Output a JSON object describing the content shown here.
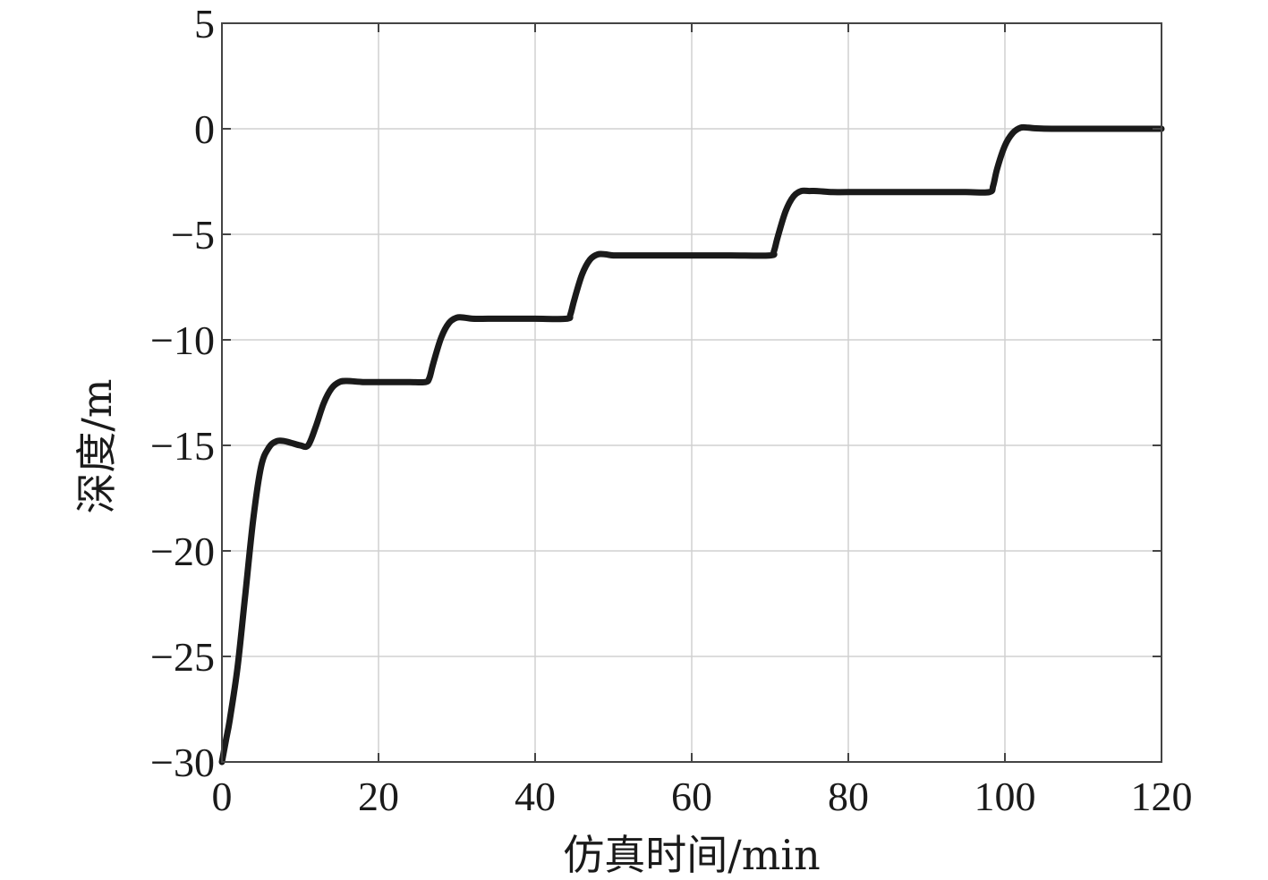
{
  "chart_data": {
    "type": "line",
    "title": "",
    "xlabel": "仿真时间/min",
    "ylabel": "深度/m",
    "xlim": [
      0,
      120
    ],
    "ylim": [
      -30,
      5
    ],
    "xticks": [
      0,
      20,
      40,
      60,
      80,
      100,
      120
    ],
    "yticks": [
      5,
      0,
      -5,
      -10,
      -15,
      -20,
      -25,
      -30
    ],
    "xtick_labels": [
      "0",
      "20",
      "40",
      "60",
      "80",
      "100",
      "120"
    ],
    "ytick_labels": [
      "5",
      "0",
      "−5",
      "−10",
      "−15",
      "−20",
      "−25",
      "−30"
    ],
    "grid": true,
    "legend": "none",
    "line_color": "#1a1a1a",
    "series": [
      {
        "x": [
          0,
          0.5,
          1,
          2,
          3,
          4,
          5,
          6,
          7,
          8,
          9,
          10,
          11,
          12,
          13,
          14,
          15,
          16,
          18,
          20,
          22,
          24,
          26,
          26.5,
          27,
          28,
          29,
          30,
          31,
          32,
          34,
          36,
          40,
          44,
          44.5,
          45,
          46,
          47,
          48,
          49,
          50,
          52,
          55,
          60,
          65,
          70,
          70.5,
          71,
          72,
          73,
          74,
          75,
          76,
          78,
          80,
          85,
          90,
          95,
          98,
          98.5,
          99,
          100,
          101,
          102,
          103,
          104,
          106,
          110,
          115,
          120
        ],
        "y": [
          -30,
          -29,
          -28,
          -25.5,
          -22,
          -18.5,
          -16,
          -15.1,
          -14.8,
          -14.8,
          -14.9,
          -15,
          -15,
          -14.1,
          -13,
          -12.3,
          -12,
          -11.95,
          -12,
          -12,
          -12,
          -12,
          -12,
          -11.8,
          -11.1,
          -9.9,
          -9.2,
          -8.95,
          -8.95,
          -9,
          -9,
          -9,
          -9,
          -9,
          -8.8,
          -8.1,
          -6.9,
          -6.2,
          -5.95,
          -5.95,
          -6,
          -6,
          -6,
          -6,
          -6,
          -6,
          -5.8,
          -5.1,
          -3.9,
          -3.2,
          -2.95,
          -2.95,
          -2.95,
          -3,
          -3,
          -3,
          -3,
          -3,
          -3,
          -2.7,
          -1.9,
          -0.8,
          -0.2,
          0.05,
          0.05,
          0.02,
          0,
          0,
          0,
          0
        ]
      }
    ]
  }
}
